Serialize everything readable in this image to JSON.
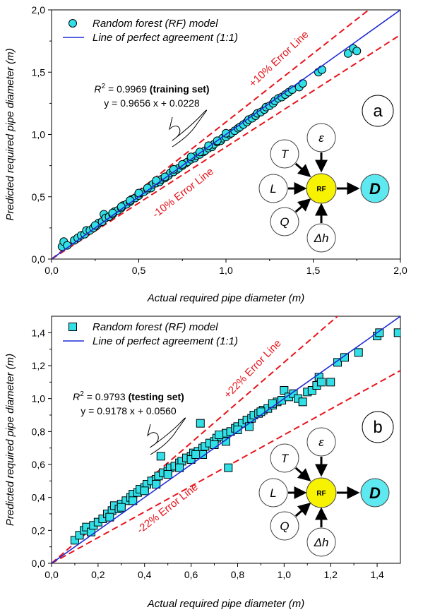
{
  "colors": {
    "marker": "#31e0e6",
    "marker_edge": "#000000",
    "perfect_line": "#1f2bd6",
    "error_line": "#e8141b",
    "rf_node": "#f7f200",
    "output_node": "#5ee8f0"
  },
  "chart_data": [
    {
      "type": "scatter",
      "panel_label": "a",
      "marker": "circle",
      "xlabel": "Actual required pipe diameter (m)",
      "ylabel": "Predicted required pipe diameter (m)",
      "xlim": [
        0,
        2
      ],
      "ylim": [
        0,
        2
      ],
      "xticks": [
        "0,0",
        "0,5",
        "1,0",
        "1,5",
        "2,0"
      ],
      "yticks": [
        "0,0",
        "0,5",
        "1,0",
        "1,5",
        "2,0"
      ],
      "legend": {
        "position": "top-left",
        "scatter_label": "Random forest (RF) model",
        "line_label": "Line of perfect agreement (1:1)"
      },
      "r2_prefix": "R",
      "r2_sup": "2",
      "r2_value": " = 0.9969 ",
      "r2_set": "(training set)",
      "equation": "y = 0.9656 x + 0.0228",
      "error_upper_label": "+10% Error Line",
      "error_lower_label": "-10% Error Line",
      "error_factor": 0.1,
      "series": [
        {
          "name": "Random forest (RF) model",
          "points": [
            [
              0.06,
              0.1
            ],
            [
              0.07,
              0.14
            ],
            [
              0.09,
              0.11
            ],
            [
              0.13,
              0.15
            ],
            [
              0.15,
              0.17
            ],
            [
              0.17,
              0.19
            ],
            [
              0.19,
              0.2
            ],
            [
              0.2,
              0.23
            ],
            [
              0.22,
              0.23
            ],
            [
              0.24,
              0.25
            ],
            [
              0.26,
              0.27
            ],
            [
              0.27,
              0.29
            ],
            [
              0.29,
              0.3
            ],
            [
              0.3,
              0.36
            ],
            [
              0.31,
              0.33
            ],
            [
              0.33,
              0.34
            ],
            [
              0.35,
              0.36
            ],
            [
              0.36,
              0.38
            ],
            [
              0.38,
              0.39
            ],
            [
              0.4,
              0.41
            ],
            [
              0.41,
              0.43
            ],
            [
              0.43,
              0.44
            ],
            [
              0.45,
              0.46
            ],
            [
              0.46,
              0.48
            ],
            [
              0.48,
              0.49
            ],
            [
              0.5,
              0.51
            ],
            [
              0.51,
              0.53
            ],
            [
              0.53,
              0.54
            ],
            [
              0.55,
              0.56
            ],
            [
              0.57,
              0.57
            ],
            [
              0.58,
              0.6
            ],
            [
              0.6,
              0.61
            ],
            [
              0.62,
              0.62
            ],
            [
              0.63,
              0.64
            ],
            [
              0.65,
              0.65
            ],
            [
              0.67,
              0.67
            ],
            [
              0.68,
              0.69
            ],
            [
              0.7,
              0.7
            ],
            [
              0.72,
              0.72
            ],
            [
              0.73,
              0.73
            ],
            [
              0.75,
              0.75
            ],
            [
              0.77,
              0.77
            ],
            [
              0.78,
              0.78
            ],
            [
              0.8,
              0.8
            ],
            [
              0.82,
              0.81
            ],
            [
              0.83,
              0.83
            ],
            [
              0.85,
              0.84
            ],
            [
              0.87,
              0.86
            ],
            [
              0.88,
              0.87
            ],
            [
              0.9,
              0.89
            ],
            [
              0.92,
              0.9
            ],
            [
              0.93,
              0.92
            ],
            [
              0.95,
              0.94
            ],
            [
              0.97,
              0.95
            ],
            [
              0.98,
              0.97
            ],
            [
              1.0,
              0.98
            ],
            [
              1.02,
              1.0
            ],
            [
              1.03,
              1.01
            ],
            [
              1.05,
              1.03
            ],
            [
              1.07,
              1.05
            ],
            [
              1.08,
              1.06
            ],
            [
              1.1,
              1.08
            ],
            [
              1.12,
              1.1
            ],
            [
              1.13,
              1.12
            ],
            [
              1.15,
              1.13
            ],
            [
              1.17,
              1.15
            ],
            [
              1.18,
              1.17
            ],
            [
              1.2,
              1.18
            ],
            [
              1.22,
              1.2
            ],
            [
              1.23,
              1.22
            ],
            [
              1.25,
              1.23
            ],
            [
              1.27,
              1.25
            ],
            [
              1.28,
              1.27
            ],
            [
              1.3,
              1.29
            ],
            [
              1.32,
              1.3
            ],
            [
              1.34,
              1.32
            ],
            [
              1.36,
              1.34
            ],
            [
              1.38,
              1.36
            ],
            [
              1.42,
              1.38
            ],
            [
              1.44,
              1.41
            ],
            [
              1.53,
              1.5
            ],
            [
              1.55,
              1.52
            ],
            [
              1.7,
              1.65
            ],
            [
              1.73,
              1.69
            ],
            [
              1.75,
              1.67
            ],
            [
              0.25,
              0.27
            ],
            [
              0.35,
              0.37
            ],
            [
              0.45,
              0.47
            ],
            [
              0.55,
              0.57
            ],
            [
              0.65,
              0.66
            ],
            [
              0.75,
              0.76
            ],
            [
              0.85,
              0.86
            ],
            [
              0.95,
              0.95
            ],
            [
              0.6,
              0.63
            ],
            [
              0.7,
              0.72
            ],
            [
              0.8,
              0.82
            ],
            [
              0.9,
              0.91
            ],
            [
              1.0,
              1.01
            ],
            [
              0.5,
              0.53
            ],
            [
              0.4,
              0.42
            ]
          ]
        }
      ]
    },
    {
      "type": "scatter",
      "panel_label": "b",
      "marker": "square",
      "xlabel": "Actual required pipe diameter (m)",
      "ylabel": "Predicted required pipe diameter (m)",
      "xlim": [
        0,
        1.5
      ],
      "ylim": [
        0,
        1.5
      ],
      "xticks": [
        "0,0",
        "0,2",
        "0,4",
        "0,6",
        "0,8",
        "1,0",
        "1,2",
        "1,4"
      ],
      "yticks": [
        "0,0",
        "0,2",
        "0,4",
        "0,6",
        "0,8",
        "1,0",
        "1,2",
        "1,4"
      ],
      "legend": {
        "position": "top-left",
        "scatter_label": "Random forest (RF) model",
        "line_label": "Line of perfect agreement (1:1)"
      },
      "r2_prefix": "R",
      "r2_sup": "2",
      "r2_value": " = 0.9793 ",
      "r2_set": "(testing set)",
      "equation": "y = 0.9178 x + 0.0560",
      "error_upper_label": "+22% Error Line",
      "error_lower_label": "-22% Error Line",
      "error_factor": 0.22,
      "series": [
        {
          "name": "Random forest (RF) model",
          "points": [
            [
              0.1,
              0.14
            ],
            [
              0.12,
              0.17
            ],
            [
              0.14,
              0.2
            ],
            [
              0.15,
              0.22
            ],
            [
              0.17,
              0.19
            ],
            [
              0.18,
              0.23
            ],
            [
              0.2,
              0.25
            ],
            [
              0.22,
              0.27
            ],
            [
              0.24,
              0.3
            ],
            [
              0.26,
              0.32
            ],
            [
              0.27,
              0.35
            ],
            [
              0.29,
              0.33
            ],
            [
              0.3,
              0.36
            ],
            [
              0.32,
              0.38
            ],
            [
              0.34,
              0.4
            ],
            [
              0.35,
              0.42
            ],
            [
              0.37,
              0.43
            ],
            [
              0.38,
              0.45
            ],
            [
              0.4,
              0.46
            ],
            [
              0.41,
              0.48
            ],
            [
              0.43,
              0.5
            ],
            [
              0.45,
              0.51
            ],
            [
              0.46,
              0.53
            ],
            [
              0.47,
              0.65
            ],
            [
              0.48,
              0.55
            ],
            [
              0.5,
              0.56
            ],
            [
              0.51,
              0.58
            ],
            [
              0.53,
              0.59
            ],
            [
              0.55,
              0.61
            ],
            [
              0.56,
              0.62
            ],
            [
              0.58,
              0.64
            ],
            [
              0.6,
              0.65
            ],
            [
              0.61,
              0.67
            ],
            [
              0.63,
              0.68
            ],
            [
              0.64,
              0.85
            ],
            [
              0.65,
              0.7
            ],
            [
              0.66,
              0.71
            ],
            [
              0.68,
              0.73
            ],
            [
              0.7,
              0.74
            ],
            [
              0.71,
              0.76
            ],
            [
              0.73,
              0.77
            ],
            [
              0.75,
              0.79
            ],
            [
              0.76,
              0.58
            ],
            [
              0.77,
              0.8
            ],
            [
              0.79,
              0.82
            ],
            [
              0.8,
              0.83
            ],
            [
              0.82,
              0.85
            ],
            [
              0.84,
              0.87
            ],
            [
              0.86,
              0.88
            ],
            [
              0.87,
              0.9
            ],
            [
              0.89,
              0.91
            ],
            [
              0.91,
              0.93
            ],
            [
              0.93,
              0.94
            ],
            [
              0.95,
              0.96
            ],
            [
              0.97,
              0.98
            ],
            [
              0.99,
              0.99
            ],
            [
              1.0,
              1.05
            ],
            [
              1.02,
              1.01
            ],
            [
              1.04,
              1.03
            ],
            [
              1.06,
              1.0
            ],
            [
              1.08,
              0.98
            ],
            [
              1.1,
              1.04
            ],
            [
              1.12,
              1.05
            ],
            [
              1.14,
              1.08
            ],
            [
              1.15,
              1.13
            ],
            [
              1.16,
              1.1
            ],
            [
              1.2,
              1.1
            ],
            [
              1.23,
              1.22
            ],
            [
              1.26,
              1.25
            ],
            [
              1.32,
              1.28
            ],
            [
              1.4,
              1.38
            ],
            [
              1.41,
              1.4
            ],
            [
              1.49,
              1.4
            ],
            [
              0.3,
              0.34
            ],
            [
              0.4,
              0.44
            ],
            [
              0.5,
              0.54
            ],
            [
              0.6,
              0.63
            ],
            [
              0.7,
              0.72
            ],
            [
              0.8,
              0.81
            ],
            [
              0.9,
              0.92
            ],
            [
              0.35,
              0.38
            ],
            [
              0.45,
              0.48
            ],
            [
              0.55,
              0.58
            ],
            [
              0.65,
              0.66
            ],
            [
              0.75,
              0.74
            ],
            [
              0.85,
              0.83
            ],
            [
              0.95,
              0.97
            ],
            [
              0.25,
              0.28
            ],
            [
              0.62,
              0.66
            ],
            [
              0.72,
              0.78
            ]
          ]
        }
      ]
    }
  ],
  "diagram": {
    "inputs": [
      "T",
      "ε",
      "L",
      "Q",
      "Δh"
    ],
    "model": "RF",
    "output": "D"
  }
}
